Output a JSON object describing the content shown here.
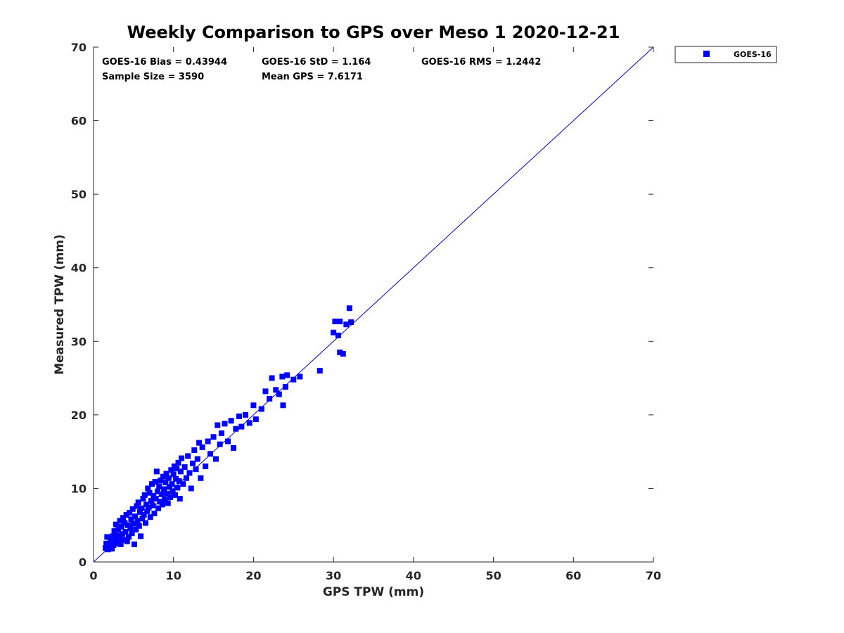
{
  "chart_data": {
    "type": "scatter",
    "title": "Weekly Comparison to GPS over Meso 1 2020-12-21",
    "xlabel": "GPS TPW (mm)",
    "ylabel": "Measured TPW (mm)",
    "xlim": [
      0,
      70
    ],
    "ylim": [
      0,
      70
    ],
    "xticks": [
      "0",
      "10",
      "20",
      "30",
      "40",
      "50",
      "60",
      "70"
    ],
    "yticks": [
      "0",
      "10",
      "20",
      "30",
      "40",
      "50",
      "60",
      "70"
    ],
    "grid": false,
    "legend_position": "outside-top-right",
    "colors": {
      "series": "#0000ff",
      "reference_line": "#0000cc",
      "axis": "#262626"
    },
    "annotations": [
      "GOES-16 Bias = 0.43944",
      "GOES-16 StD = 1.164",
      "GOES-16 RMS = 1.2442",
      "Sample Size = 3590",
      "Mean GPS = 7.6171"
    ],
    "reference_line": {
      "name": "1:1",
      "from": [
        0,
        0
      ],
      "to": [
        70,
        70
      ]
    },
    "series": [
      {
        "name": "GOES-16",
        "marker": "square",
        "points": [
          [
            1.5,
            1.9
          ],
          [
            1.6,
            2.5
          ],
          [
            1.7,
            3.4
          ],
          [
            1.8,
            1.7
          ],
          [
            2.0,
            2.2
          ],
          [
            2.1,
            3.0
          ],
          [
            2.2,
            2.6
          ],
          [
            2.3,
            1.8
          ],
          [
            2.4,
            3.5
          ],
          [
            2.5,
            2.3
          ],
          [
            2.6,
            4.2
          ],
          [
            2.7,
            2.9
          ],
          [
            2.8,
            5.1
          ],
          [
            2.9,
            3.6
          ],
          [
            3.0,
            2.5
          ],
          [
            3.1,
            4.4
          ],
          [
            3.2,
            3.1
          ],
          [
            3.3,
            5.6
          ],
          [
            3.4,
            2.4
          ],
          [
            3.5,
            4.8
          ],
          [
            3.6,
            3.8
          ],
          [
            3.7,
            6.0
          ],
          [
            3.8,
            3.0
          ],
          [
            3.9,
            5.3
          ],
          [
            4.0,
            4.1
          ],
          [
            4.1,
            6.4
          ],
          [
            4.2,
            2.8
          ],
          [
            4.3,
            5.0
          ],
          [
            4.4,
            3.4
          ],
          [
            4.5,
            6.7
          ],
          [
            4.6,
            4.6
          ],
          [
            4.7,
            5.8
          ],
          [
            4.8,
            3.9
          ],
          [
            4.9,
            7.2
          ],
          [
            5.0,
            5.2
          ],
          [
            5.1,
            2.4
          ],
          [
            5.2,
            6.2
          ],
          [
            5.3,
            4.4
          ],
          [
            5.4,
            7.6
          ],
          [
            5.5,
            5.6
          ],
          [
            5.6,
            8.1
          ],
          [
            5.7,
            4.9
          ],
          [
            5.8,
            6.8
          ],
          [
            5.9,
            3.5
          ],
          [
            6.0,
            7.3
          ],
          [
            6.1,
            5.9
          ],
          [
            6.2,
            8.6
          ],
          [
            6.3,
            6.4
          ],
          [
            6.4,
            9.1
          ],
          [
            6.5,
            5.3
          ],
          [
            6.6,
            7.8
          ],
          [
            6.7,
            6.9
          ],
          [
            6.8,
            10.0
          ],
          [
            6.9,
            7.4
          ],
          [
            7.0,
            9.4
          ],
          [
            7.1,
            6.1
          ],
          [
            7.2,
            8.3
          ],
          [
            7.3,
            10.6
          ],
          [
            7.4,
            7.7
          ],
          [
            7.5,
            9.0
          ],
          [
            7.6,
            6.6
          ],
          [
            7.7,
            10.9
          ],
          [
            7.8,
            8.6
          ],
          [
            7.9,
            12.3
          ],
          [
            8.0,
            9.6
          ],
          [
            8.1,
            7.3
          ],
          [
            8.2,
            10.3
          ],
          [
            8.3,
            8.2
          ],
          [
            8.4,
            11.1
          ],
          [
            8.5,
            9.2
          ],
          [
            8.6,
            7.8
          ],
          [
            8.7,
            11.6
          ],
          [
            8.8,
            9.9
          ],
          [
            8.9,
            8.5
          ],
          [
            9.0,
            10.8
          ],
          [
            9.1,
            12.0
          ],
          [
            9.2,
            9.3
          ],
          [
            9.3,
            8.0
          ],
          [
            9.4,
            11.4
          ],
          [
            9.5,
            10.2
          ],
          [
            9.6,
            8.8
          ],
          [
            9.7,
            12.5
          ],
          [
            9.8,
            10.6
          ],
          [
            9.9,
            9.6
          ],
          [
            10.0,
            11.9
          ],
          [
            10.1,
            13.0
          ],
          [
            10.2,
            9.1
          ],
          [
            10.3,
            11.3
          ],
          [
            10.4,
            12.7
          ],
          [
            10.5,
            10.1
          ],
          [
            10.6,
            13.5
          ],
          [
            10.7,
            11.0
          ],
          [
            10.8,
            8.6
          ],
          [
            10.9,
            12.3
          ],
          [
            11.0,
            14.1
          ],
          [
            11.2,
            10.6
          ],
          [
            11.4,
            12.9
          ],
          [
            11.6,
            11.4
          ],
          [
            11.8,
            14.4
          ],
          [
            12.0,
            12.1
          ],
          [
            12.2,
            10.0
          ],
          [
            12.4,
            13.4
          ],
          [
            12.6,
            15.2
          ],
          [
            12.8,
            12.6
          ],
          [
            13.0,
            14.0
          ],
          [
            13.2,
            16.2
          ],
          [
            13.4,
            11.4
          ],
          [
            13.6,
            15.6
          ],
          [
            14.0,
            13.0
          ],
          [
            14.3,
            16.4
          ],
          [
            14.6,
            14.7
          ],
          [
            15.0,
            17.0
          ],
          [
            15.3,
            14.0
          ],
          [
            15.5,
            18.6
          ],
          [
            15.8,
            16.0
          ],
          [
            16.0,
            17.5
          ],
          [
            16.4,
            18.8
          ],
          [
            16.8,
            16.4
          ],
          [
            17.2,
            19.2
          ],
          [
            17.5,
            15.5
          ],
          [
            17.8,
            18.1
          ],
          [
            18.2,
            19.8
          ],
          [
            18.5,
            18.4
          ],
          [
            19.0,
            20.0
          ],
          [
            19.5,
            18.9
          ],
          [
            20.0,
            21.3
          ],
          [
            20.3,
            19.4
          ],
          [
            21.0,
            20.8
          ],
          [
            21.5,
            23.2
          ],
          [
            22.0,
            22.2
          ],
          [
            22.3,
            25.0
          ],
          [
            22.8,
            23.4
          ],
          [
            23.2,
            22.8
          ],
          [
            23.6,
            25.2
          ],
          [
            23.7,
            21.3
          ],
          [
            24.0,
            23.8
          ],
          [
            24.2,
            25.4
          ],
          [
            25.0,
            24.8
          ],
          [
            25.8,
            25.2
          ],
          [
            28.3,
            26.0
          ],
          [
            30.0,
            31.2
          ],
          [
            30.2,
            32.7
          ],
          [
            30.6,
            30.8
          ],
          [
            30.8,
            32.7
          ],
          [
            30.8,
            28.5
          ],
          [
            31.2,
            28.3
          ],
          [
            31.6,
            32.3
          ],
          [
            32.0,
            34.5
          ],
          [
            32.2,
            32.6
          ]
        ]
      }
    ]
  }
}
